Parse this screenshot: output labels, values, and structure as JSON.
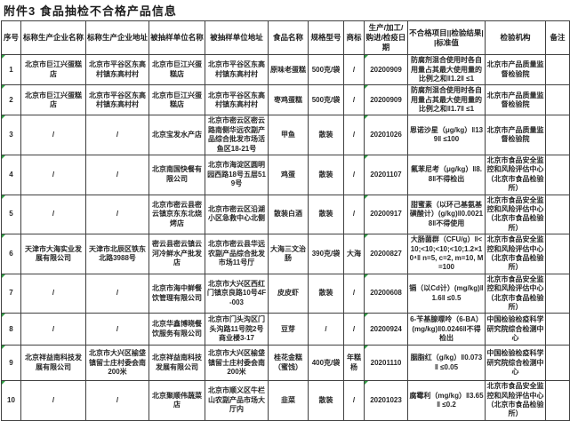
{
  "title": "附件3  食品抽检不合格产品信息",
  "colors": {
    "grid": "#404040",
    "text": "#262626",
    "flag_marker_green": "#2f9e44",
    "background": "#ffffff"
  },
  "table": {
    "columns": [
      "序号",
      "标称生产企业名称",
      "标称生产企业地址",
      "被抽样单位名称",
      "被抽样单位地址",
      "食品名称",
      "规格型号",
      "商标",
      "生产/加工/购进/检疫日期",
      "不合格项目||检验结果||标准值",
      "检验机构",
      "备注"
    ],
    "col_keys": [
      "serial-cell",
      "producer-name-cell",
      "producer-address-cell",
      "sampled-unit-name-cell",
      "sampled-unit-address-cell",
      "food-name-cell",
      "spec-cell",
      "brand-cell",
      "date-cell",
      "defect-result-cell",
      "agency-cell",
      "note-cell"
    ],
    "rows": [
      [
        "1",
        "北京市巨江兴蛋糕店",
        "北京市平谷区东高村镇东高村村",
        "北京市巨江兴蛋糕店",
        "北京市平谷区东高村镇东高村村",
        "原味老蛋糕",
        "500克/袋",
        "/",
        "20200909",
        "防腐剂混合使用时各自用量占其最大使用量的比例之和‖1.2‖ ≤1",
        "北京市产品质量监督检验院",
        ""
      ],
      [
        "2",
        "北京市巨江兴蛋糕店",
        "北京市平谷区东高村镇东高村村",
        "北京市巨江兴蛋糕店",
        "北京市平谷区东高村镇东高村村",
        "枣鸡蛋糕",
        "500克/袋",
        "/",
        "20200909",
        "防腐剂混合使用时各自用量占其最大使用量的比例之和‖1.7‖ ≤1",
        "北京市产品质量监督检验院",
        ""
      ],
      [
        "3",
        "/",
        "/",
        "北京宝发水产店",
        "北京市密云区密云路南侧华远农副产品综合批发市场活鱼区18-21号",
        "甲鱼",
        "散装",
        "/",
        "20201026",
        "恩诺沙星（μg/kg）‖139‖ ≤100",
        "北京市产品质量监督检验院",
        ""
      ],
      [
        "4",
        "/",
        "/",
        "北京南国快餐有限公司",
        "北京市海淀区圆明园西路18号五层519号",
        "鸡蛋",
        "散装",
        "/",
        "20201107",
        "氟苯尼考（μg/kg）‖8.8‖不得检出",
        "北京市食品安全监控和风险评估中心（北京市食品检验所）",
        ""
      ],
      [
        "5",
        "/",
        "/",
        "北京市密云县密云镇京东东北烧烤店",
        "北京市密云区沿湖小区急救中心北侧",
        "散装白酒",
        "散装",
        "/",
        "20200917",
        "甜蜜素（以环己基氨基磺酸计）(g/kg)‖0.00218‖不得使用",
        "北京市食品安全监控和风险评估中心（北京市食品检验所）",
        ""
      ],
      [
        "6",
        "天津市大海实业发展有限公司",
        "天津市北辰区铁东北路3988号",
        "密云县密云镇云河冷鲜水产批发店",
        "北京市密云县华远农副产品综合批发市场11号厅",
        "大海三文治肠",
        "390克/袋",
        "大海",
        "20200827",
        "大肠菌群（CFU/g）‖<10;<10;<10;<10;1.2×10⁴‖ n=5, c=2, m=10, M=100",
        "北京市食品安全监控和风险评估中心（北京市食品检验所）",
        ""
      ],
      [
        "7",
        "/",
        "/",
        "北京市海中鲜餐饮管理有限公司",
        "北京市大兴区西红门镇京良路10号4F-003",
        "皮皮虾",
        "散装",
        "/",
        "20200608",
        "镉（以Cd计）(mg/kg)‖1.6‖ ≤0.5",
        "北京市食品安全监控和风险评估中心（北京市食品检验所）",
        ""
      ],
      [
        "8",
        "/",
        "/",
        "北京华鑫博晓餐饮服务有限公司",
        "北京市门头沟区门头沟路11号院2号商业楼3-17",
        "豆芽",
        "/",
        "/",
        "20200924",
        "6-苄基腺嘌呤（6-BA）(mg/kg)‖0.0246‖不得检出",
        "中国检验检疫科学研究院综合检测中心",
        ""
      ],
      [
        "9",
        "北京祥益南科技发展有限公司",
        "北京市大兴区榆垡镇留士庄村委会南200米",
        "北京祥益南科技发展有限公司",
        "北京市大兴区榆垡镇留士庄村委会南200米",
        "桂花金糕（蜜饯）",
        "400克/袋",
        "年糕杨",
        "20201110",
        "胭脂红（g/kg）‖0.073‖ ≤0.05",
        "中国检验检疫科学研究院综合检测中心",
        ""
      ],
      [
        "10",
        "/",
        "/",
        "北京聚顺伟蔬菜店",
        "北京市顺义区牛栏山农副产品市场大厅内",
        "韭菜",
        "散装",
        "/",
        "20201023",
        "腐霉利（mg/kg）‖3.65‖ ≤0.2",
        "北京市食品安全监控和风险评估中心（北京市食品检验所）",
        ""
      ]
    ]
  }
}
